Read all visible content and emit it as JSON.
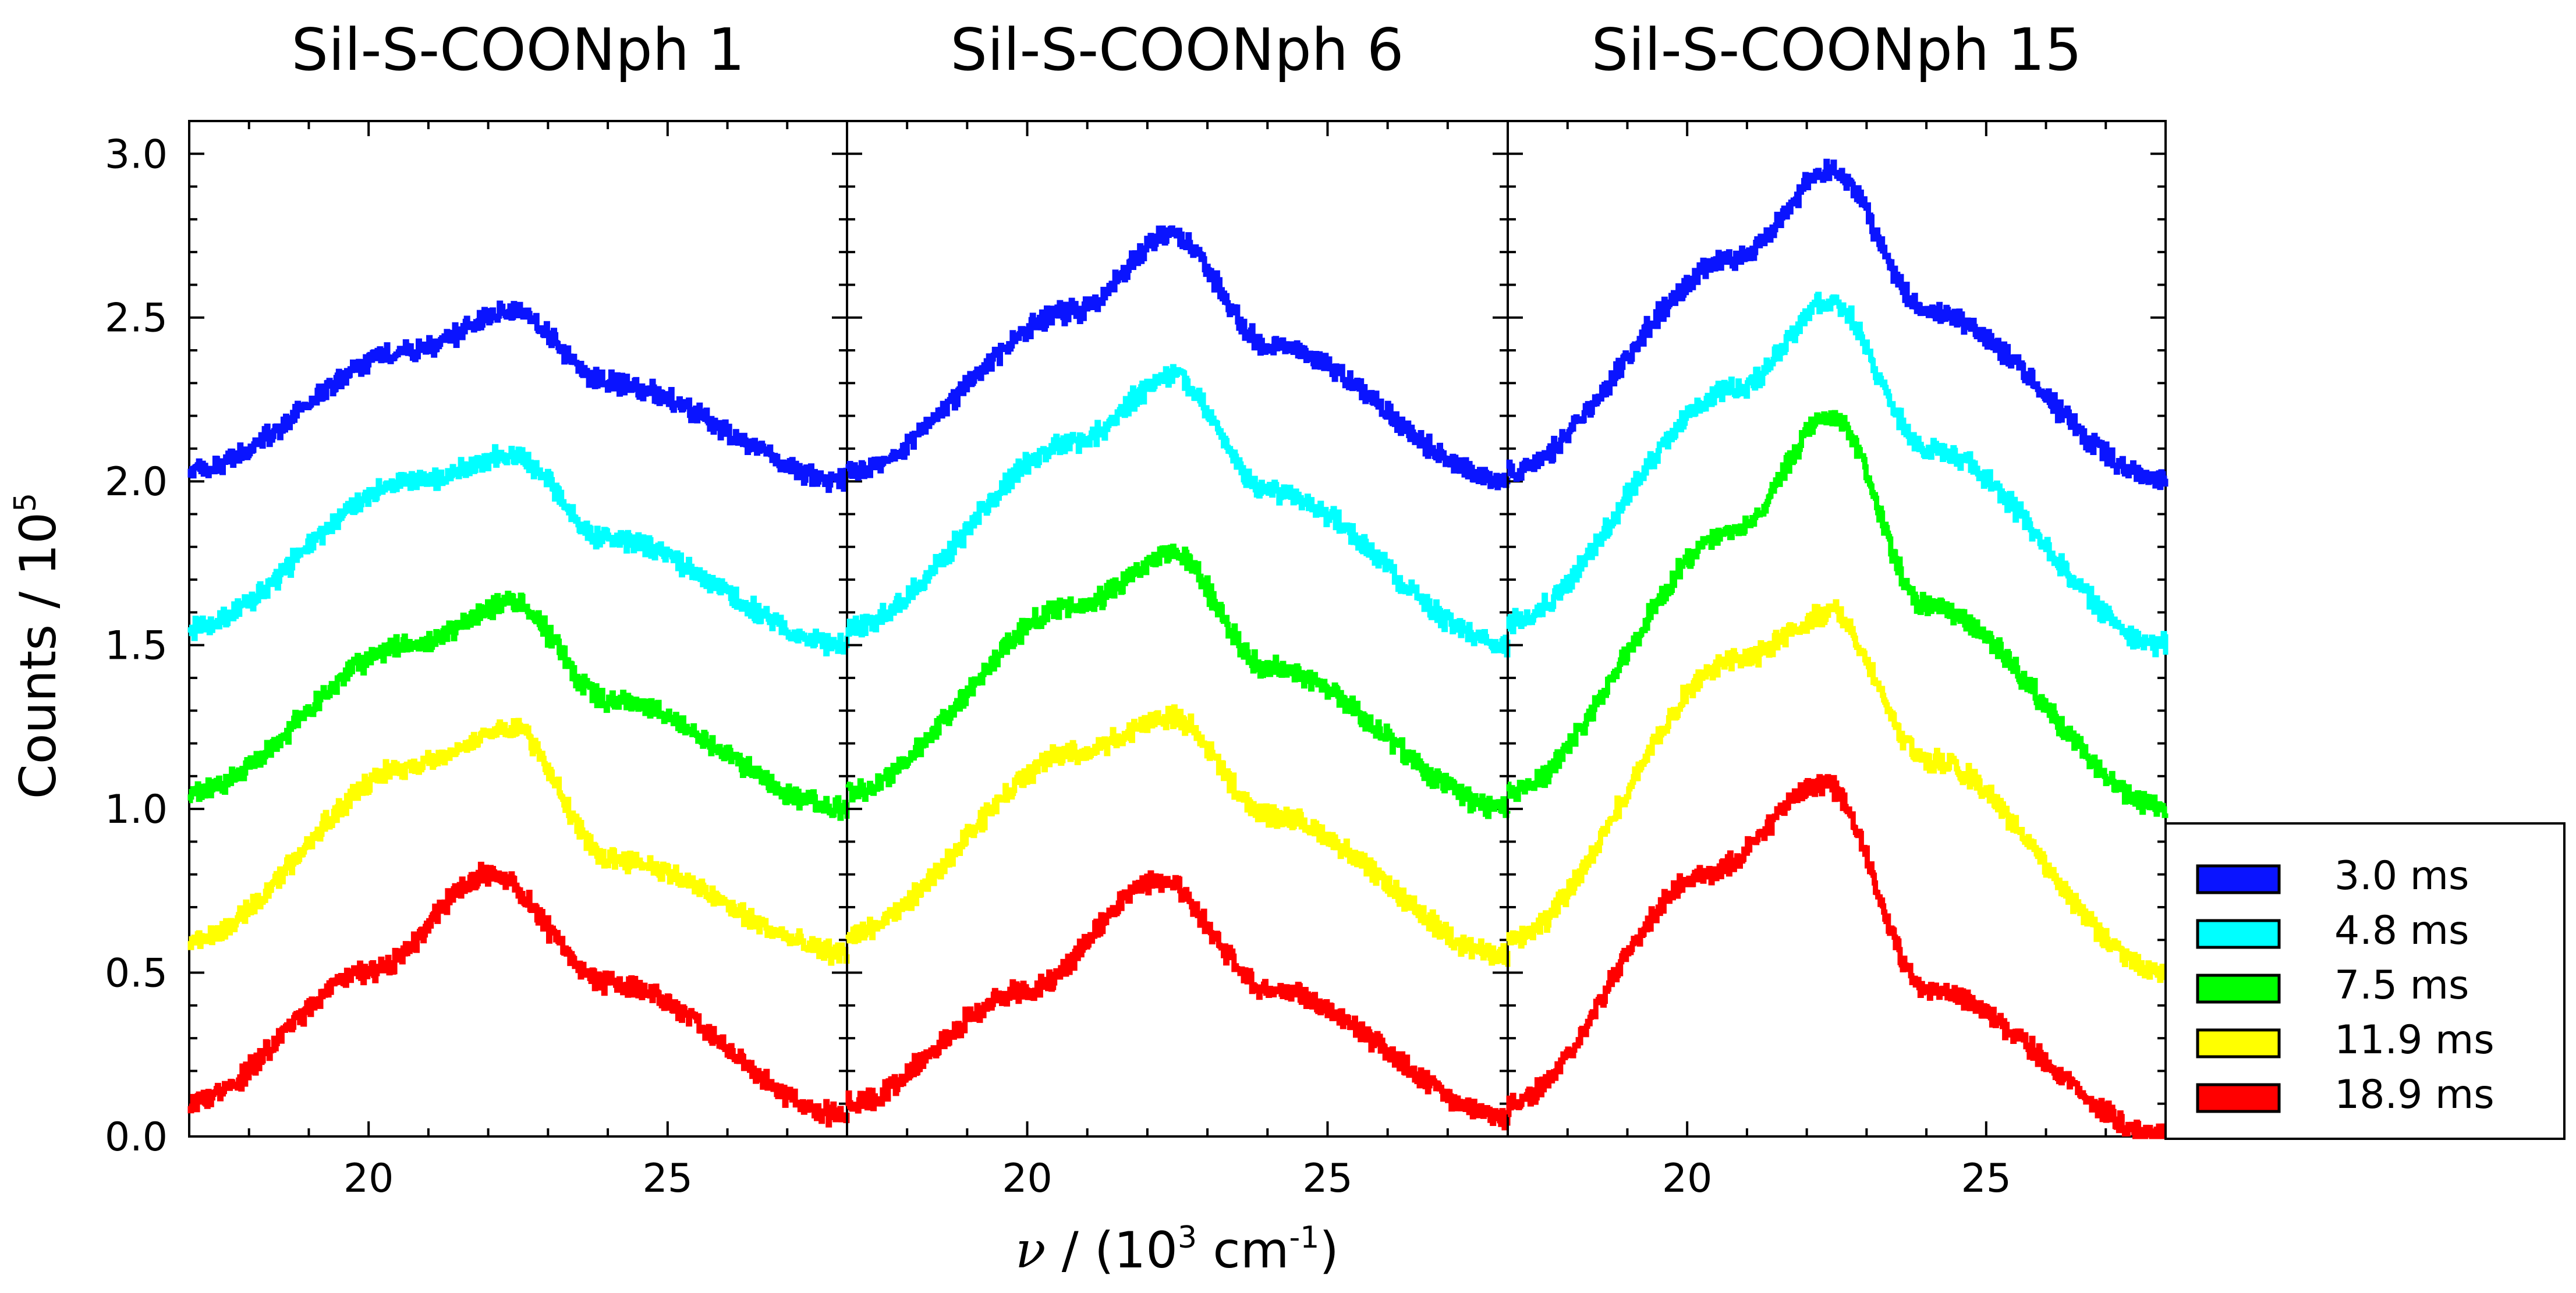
{
  "chart_data": {
    "type": "line",
    "panels": [
      {
        "title": "Sil-S-COONph 1",
        "series": [
          {
            "name": "3.0 ms",
            "color": "#0a14ff",
            "offset": 2.0,
            "peak_sharpness": 0.6,
            "peaks": [
              [
                17.0,
                0.03
              ],
              [
                20.7,
                0.4
              ],
              [
                22.4,
                0.52
              ],
              [
                24.0,
                0.3
              ],
              [
                28.0,
                0.0
              ]
            ]
          },
          {
            "name": "4.8 ms",
            "color": "#00ffff",
            "offset": 1.5,
            "peak_sharpness": 0.6,
            "peaks": [
              [
                17.0,
                0.05
              ],
              [
                20.7,
                0.5
              ],
              [
                22.4,
                0.58
              ],
              [
                24.0,
                0.32
              ],
              [
                28.0,
                0.0
              ]
            ]
          },
          {
            "name": "7.5 ms",
            "color": "#00ff00",
            "offset": 1.0,
            "peak_sharpness": 0.5,
            "peaks": [
              [
                17.0,
                0.05
              ],
              [
                20.7,
                0.5
              ],
              [
                22.4,
                0.63
              ],
              [
                24.0,
                0.33
              ],
              [
                28.0,
                0.0
              ]
            ]
          },
          {
            "name": "11.9 ms",
            "color": "#ffff00",
            "offset": 0.55,
            "peak_sharpness": 0.4,
            "peaks": [
              [
                17.0,
                0.05
              ],
              [
                20.7,
                0.58
              ],
              [
                22.4,
                0.7
              ],
              [
                24.0,
                0.3
              ],
              [
                28.0,
                0.01
              ]
            ]
          },
          {
            "name": "18.9 ms",
            "color": "#ff0000",
            "offset": 0.05,
            "peak_sharpness": 0.2,
            "peaks": [
              [
                17.0,
                0.05
              ],
              [
                20.0,
                0.45
              ],
              [
                22.0,
                0.75
              ],
              [
                24.0,
                0.42
              ],
              [
                28.0,
                0.01
              ]
            ]
          }
        ]
      },
      {
        "title": "Sil-S-COONph 6",
        "series": [
          {
            "name": "3.0 ms",
            "color": "#0a14ff",
            "offset": 2.0,
            "peak_sharpness": 0.8,
            "peaks": [
              [
                17.0,
                0.03
              ],
              [
                20.8,
                0.52
              ],
              [
                22.4,
                0.75
              ],
              [
                24.0,
                0.42
              ],
              [
                28.0,
                0.0
              ]
            ]
          },
          {
            "name": "4.8 ms",
            "color": "#00ffff",
            "offset": 1.5,
            "peak_sharpness": 0.8,
            "peaks": [
              [
                17.0,
                0.05
              ],
              [
                20.8,
                0.62
              ],
              [
                22.4,
                0.82
              ],
              [
                24.0,
                0.47
              ],
              [
                28.0,
                0.0
              ]
            ]
          },
          {
            "name": "7.5 ms",
            "color": "#00ff00",
            "offset": 1.0,
            "peak_sharpness": 0.75,
            "peaks": [
              [
                17.0,
                0.05
              ],
              [
                20.8,
                0.62
              ],
              [
                22.4,
                0.78
              ],
              [
                24.0,
                0.43
              ],
              [
                28.0,
                0.0
              ]
            ]
          },
          {
            "name": "11.9 ms",
            "color": "#ffff00",
            "offset": 0.55,
            "peak_sharpness": 0.6,
            "peaks": [
              [
                17.0,
                0.07
              ],
              [
                20.8,
                0.62
              ],
              [
                22.4,
                0.73
              ],
              [
                24.0,
                0.43
              ],
              [
                28.0,
                0.0
              ]
            ]
          },
          {
            "name": "18.9 ms",
            "color": "#ff0000",
            "offset": 0.05,
            "peak_sharpness": 0.3,
            "peaks": [
              [
                17.0,
                0.05
              ],
              [
                20.0,
                0.4
              ],
              [
                22.2,
                0.73
              ],
              [
                24.0,
                0.4
              ],
              [
                28.0,
                0.01
              ]
            ]
          }
        ]
      },
      {
        "title": "Sil-S-COONph 15",
        "series": [
          {
            "name": "3.0 ms",
            "color": "#0a14ff",
            "offset": 2.0,
            "peak_sharpness": 0.9,
            "peaks": [
              [
                17.0,
                0.03
              ],
              [
                20.8,
                0.68
              ],
              [
                22.4,
                0.95
              ],
              [
                24.0,
                0.52
              ],
              [
                28.0,
                0.0
              ]
            ]
          },
          {
            "name": "4.8 ms",
            "color": "#00ffff",
            "offset": 1.5,
            "peak_sharpness": 0.9,
            "peaks": [
              [
                17.0,
                0.07
              ],
              [
                20.8,
                0.78
              ],
              [
                22.4,
                1.05
              ],
              [
                24.0,
                0.6
              ],
              [
                28.0,
                0.0
              ]
            ]
          },
          {
            "name": "7.5 ms",
            "color": "#00ff00",
            "offset": 1.0,
            "peak_sharpness": 0.9,
            "peaks": [
              [
                17.0,
                0.05
              ],
              [
                20.8,
                0.85
              ],
              [
                22.4,
                1.2
              ],
              [
                24.0,
                0.62
              ],
              [
                28.0,
                0.0
              ]
            ]
          },
          {
            "name": "11.9 ms",
            "color": "#ffff00",
            "offset": 0.55,
            "peak_sharpness": 0.8,
            "peaks": [
              [
                17.0,
                0.05
              ],
              [
                20.8,
                0.9
              ],
              [
                22.4,
                1.05
              ],
              [
                24.0,
                0.6
              ],
              [
                28.0,
                -0.05
              ]
            ]
          },
          {
            "name": "18.9 ms",
            "color": "#ff0000",
            "offset": 0.05,
            "peak_sharpness": 0.4,
            "peaks": [
              [
                17.0,
                0.05
              ],
              [
                20.3,
                0.75
              ],
              [
                22.3,
                1.03
              ],
              [
                24.0,
                0.4
              ],
              [
                28.0,
                -0.05
              ]
            ]
          }
        ]
      }
    ],
    "xlim": [
      17,
      28
    ],
    "ylim": [
      0,
      3.1
    ],
    "xticks": [
      20,
      25
    ],
    "yticks": [
      0.0,
      0.5,
      1.0,
      1.5,
      2.0,
      2.5,
      3.0
    ],
    "ytick_labels": [
      "0.0",
      "0.5",
      "1.0",
      "1.5",
      "2.0",
      "2.5",
      "3.0"
    ],
    "xtick_labels": [
      "20",
      "25"
    ],
    "xlabel": {
      "symbol": "ν",
      "text": " / (10",
      "sup1": "3",
      "unit": " cm",
      "sup2": "-1",
      "close": ")"
    },
    "ylabel": {
      "text": "Counts / 10",
      "sup": "5"
    },
    "legend": {
      "position": "right",
      "entries": [
        {
          "label": "3.0 ms",
          "color": "#0a14ff"
        },
        {
          "label": "4.8 ms",
          "color": "#00ffff"
        },
        {
          "label": "7.5 ms",
          "color": "#00ff00"
        },
        {
          "label": "11.9 ms",
          "color": "#ffff00"
        },
        {
          "label": "18.9 ms",
          "color": "#ff0000"
        }
      ]
    }
  }
}
